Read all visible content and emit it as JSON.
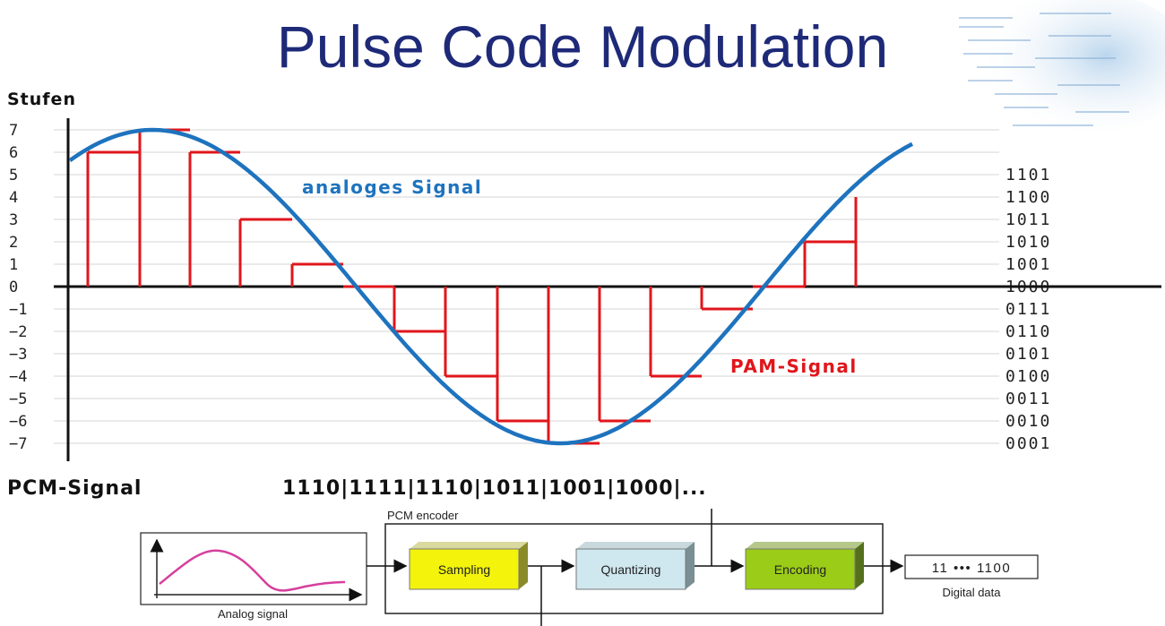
{
  "title": "Pulse Code Modulation",
  "colors": {
    "title": "#1e2a78",
    "analog": "#1e73be",
    "pam": "#e0161b",
    "grid": "#d5d5d5"
  },
  "chart_data": {
    "type": "line",
    "ylabel": "Stufen",
    "ylim": [
      -7,
      7
    ],
    "y_ticks": [
      "7",
      "6",
      "5",
      "4",
      "3",
      "2",
      "1",
      "0",
      "-1",
      "-2",
      "-3",
      "-4",
      "-5",
      "-6",
      "-7"
    ],
    "binary_codes": [
      "1101",
      "1100",
      "1011",
      "1010",
      "1001",
      "1000",
      "0111",
      "0110",
      "0101",
      "0100",
      "0011",
      "0010",
      "0001"
    ],
    "series": [
      {
        "name": "analoges Signal",
        "type": "sine",
        "peak": 7,
        "trough": -7
      },
      {
        "name": "PAM-Signal",
        "type": "step",
        "values": [
          6,
          7,
          6,
          3,
          1,
          0,
          -2,
          -4,
          -6,
          -7,
          -6,
          -4,
          -1,
          0,
          2,
          4
        ]
      }
    ]
  },
  "pcm": {
    "label": "PCM-Signal",
    "code": "1110|1111|1110|1011|1001|1000|..."
  },
  "encoder": {
    "title": "PCM encoder",
    "blocks": [
      "Sampling",
      "Quantizing",
      "Encoding"
    ],
    "input_label": "Analog signal",
    "output_label": "Digital data",
    "output_value": "11 ••• 1100"
  }
}
